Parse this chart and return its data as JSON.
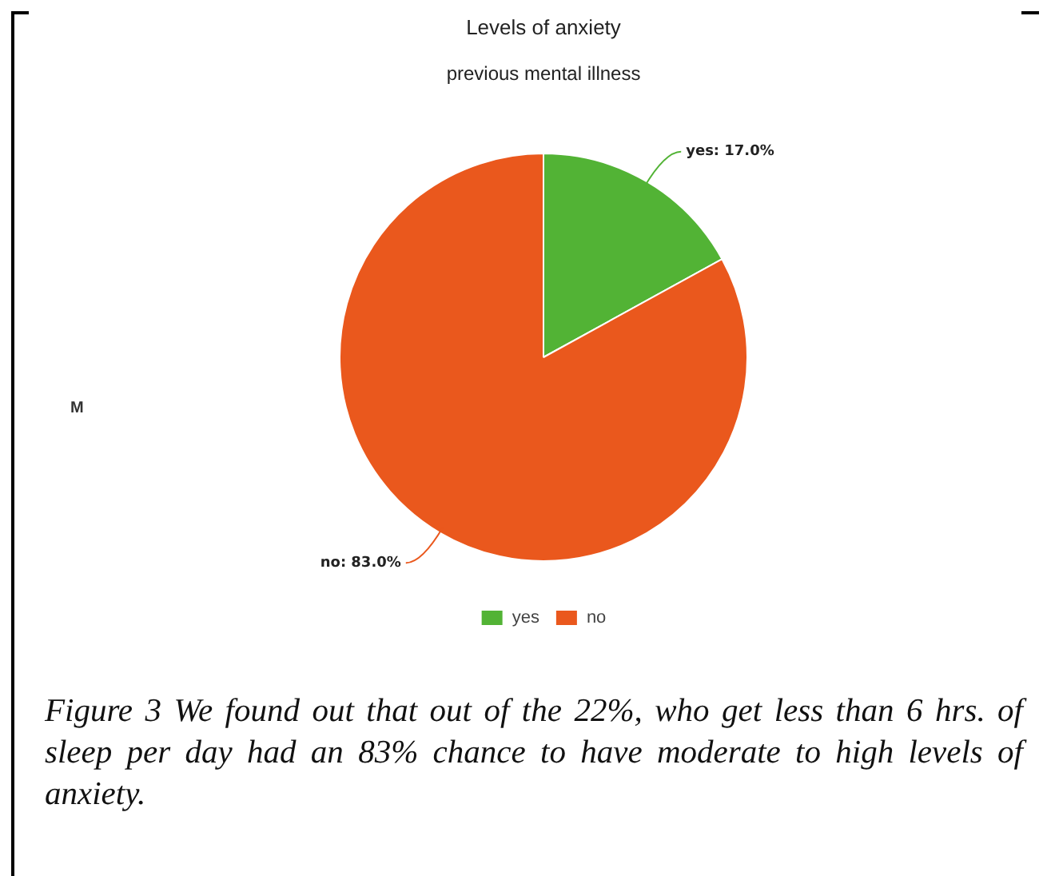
{
  "chart_data": {
    "type": "pie",
    "title": "Levels of anxiety",
    "subtitle": "previous mental illness",
    "categories": [
      "yes",
      "no"
    ],
    "values": [
      17,
      83
    ],
    "colors": [
      "#52b335",
      "#ea581d"
    ],
    "value_labels": [
      "yes: 17.0%",
      "no: 83.0%"
    ],
    "legend": "bottom",
    "annotations": [
      "M",
      "Figure 3 We found out that out of the 22%, who get less than 6 hrs. of sleep per day had an 83% chance to have moderate to high levels of anxiety."
    ]
  }
}
